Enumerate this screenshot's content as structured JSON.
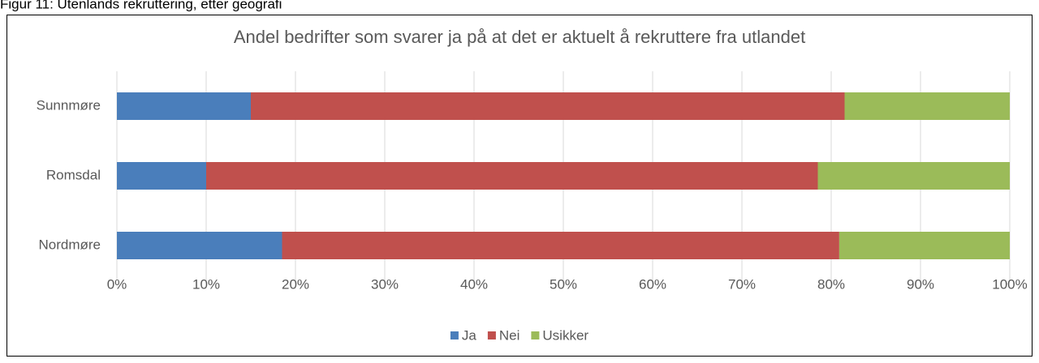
{
  "caption": "Figur 11: Utenlands rekruttering, etter geografi",
  "chart_data": {
    "type": "stacked-barh",
    "title": "Andel bedrifter som svarer ja på at det er aktuelt å rekruttere fra utlandet",
    "categories": [
      "Sunnmøre",
      "Romsdal",
      "Nordmøre"
    ],
    "series": [
      {
        "name": "Ja",
        "color": "#4a7ebb",
        "values": [
          15.0,
          10.0,
          18.5
        ]
      },
      {
        "name": "Nei",
        "color": "#c0504d",
        "values": [
          66.5,
          68.5,
          62.4
        ]
      },
      {
        "name": "Usikker",
        "color": "#9bbb59",
        "values": [
          18.5,
          21.5,
          19.1
        ]
      }
    ],
    "xlim": [
      0,
      100
    ],
    "xticks": [
      {
        "value": 0,
        "label": "0%"
      },
      {
        "value": 10,
        "label": "10%"
      },
      {
        "value": 20,
        "label": "20%"
      },
      {
        "value": 30,
        "label": "30%"
      },
      {
        "value": 40,
        "label": "40%"
      },
      {
        "value": 50,
        "label": "50%"
      },
      {
        "value": 60,
        "label": "60%"
      },
      {
        "value": 70,
        "label": "70%"
      },
      {
        "value": 80,
        "label": "80%"
      },
      {
        "value": 90,
        "label": "90%"
      },
      {
        "value": 100,
        "label": "100%"
      }
    ],
    "grid": true,
    "legend": "bottom"
  }
}
